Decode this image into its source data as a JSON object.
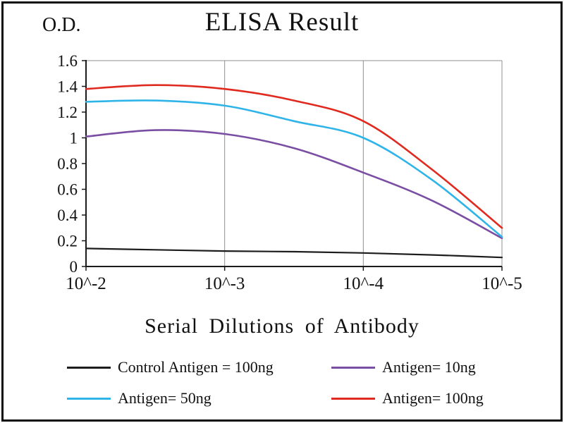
{
  "chart_data": {
    "type": "line",
    "title": "ELISA Result",
    "ylabel": "O.D.",
    "xlabel": "Serial Dilutions of Antibody",
    "x": [
      -2,
      -2.5,
      -3,
      -3.5,
      -4,
      -4.5,
      -5
    ],
    "x_tick_values": [
      -2,
      -3,
      -4,
      -5
    ],
    "x_tick_labels": [
      "10^-2",
      "10^-3",
      "10^-4",
      "10^-5"
    ],
    "ylim": [
      0,
      1.6
    ],
    "y_ticks": [
      0,
      0.2,
      0.4,
      0.6,
      0.8,
      1,
      1.2,
      1.4,
      1.6
    ],
    "grid": "vertical-only",
    "legend_position": "bottom",
    "series": [
      {
        "name": "Control Antigen = 100ng",
        "color": "#1c1c1c",
        "values": [
          0.14,
          0.13,
          0.12,
          0.115,
          0.105,
          0.09,
          0.07
        ]
      },
      {
        "name": "Antigen= 10ng",
        "color": "#7a4fa3",
        "values": [
          1.01,
          1.06,
          1.03,
          0.92,
          0.73,
          0.51,
          0.22
        ]
      },
      {
        "name": "Antigen= 50ng",
        "color": "#2fb4e9",
        "values": [
          1.28,
          1.29,
          1.25,
          1.13,
          1.0,
          0.67,
          0.23
        ]
      },
      {
        "name": "Antigen= 100ng",
        "color": "#e02a1f",
        "values": [
          1.38,
          1.41,
          1.38,
          1.29,
          1.13,
          0.75,
          0.3
        ]
      }
    ]
  }
}
